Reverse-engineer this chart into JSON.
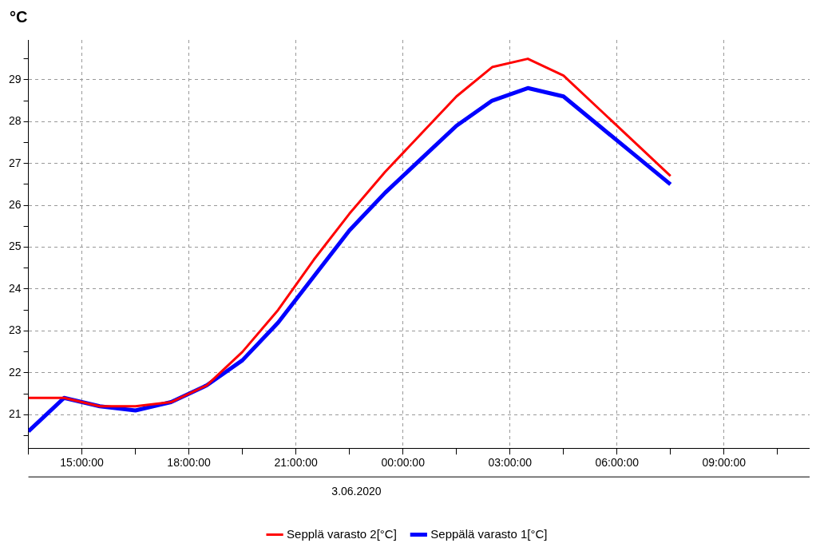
{
  "chart_data": {
    "type": "line",
    "ylabel": "°C",
    "x": [
      "2020-06-02T13:30",
      "2020-06-02T14:30",
      "2020-06-02T15:30",
      "2020-06-02T16:30",
      "2020-06-02T17:30",
      "2020-06-02T18:30",
      "2020-06-02T19:30",
      "2020-06-02T20:30",
      "2020-06-02T21:30",
      "2020-06-02T22:30",
      "2020-06-02T23:30",
      "2020-06-03T00:30",
      "2020-06-03T01:30",
      "2020-06-03T02:30",
      "2020-06-03T03:30",
      "2020-06-03T04:30",
      "2020-06-03T05:30",
      "2020-06-03T06:30",
      "2020-06-03T07:30"
    ],
    "series": [
      {
        "name": "Seppälä varasto 1[°C]",
        "color": "#0000ff",
        "values": [
          20.6,
          21.4,
          21.2,
          21.1,
          21.3,
          21.7,
          22.3,
          23.2,
          24.3,
          25.4,
          26.3,
          27.1,
          27.9,
          28.5,
          28.8,
          28.6,
          27.9,
          27.2,
          26.5
        ]
      },
      {
        "name": "Sepplä varasto 2[°C]",
        "color": "#ff0000",
        "values": [
          21.4,
          21.4,
          21.2,
          21.2,
          21.3,
          21.7,
          22.5,
          23.5,
          24.7,
          25.8,
          26.8,
          27.7,
          28.6,
          29.3,
          29.5,
          29.1,
          28.3,
          27.5,
          26.7
        ]
      }
    ],
    "xlim": [
      "2020-06-02T13:30",
      "2020-06-03T11:24"
    ],
    "xticks": [
      {
        "value": "2020-06-02T13:30",
        "label": null
      },
      {
        "value": "2020-06-02T15:00",
        "label": "15:00:00"
      },
      {
        "value": "2020-06-02T16:30",
        "label": null
      },
      {
        "value": "2020-06-02T18:00",
        "label": "18:00:00"
      },
      {
        "value": "2020-06-02T19:30",
        "label": null
      },
      {
        "value": "2020-06-02T21:00",
        "label": "21:00:00"
      },
      {
        "value": "2020-06-02T22:30",
        "label": null
      },
      {
        "value": "2020-06-03T00:00",
        "label": "00:00:00"
      },
      {
        "value": "2020-06-03T01:30",
        "label": null
      },
      {
        "value": "2020-06-03T03:00",
        "label": "03:00:00"
      },
      {
        "value": "2020-06-03T04:30",
        "label": null
      },
      {
        "value": "2020-06-03T06:00",
        "label": "06:00:00"
      },
      {
        "value": "2020-06-03T07:30",
        "label": null
      },
      {
        "value": "2020-06-03T09:00",
        "label": "09:00:00"
      },
      {
        "value": "2020-06-03T10:30",
        "label": null
      }
    ],
    "ylim": [
      20.2,
      29.95
    ],
    "yticks": [
      {
        "value": 20.5,
        "label": null
      },
      21,
      {
        "value": 21.5,
        "label": null
      },
      22,
      {
        "value": 22.5,
        "label": null
      },
      23,
      {
        "value": 23.5,
        "label": null
      },
      24,
      {
        "value": 24.5,
        "label": null
      },
      25,
      {
        "value": 25.5,
        "label": null
      },
      26,
      {
        "value": 26.5,
        "label": null
      },
      27,
      {
        "value": 27.5,
        "label": null
      },
      28,
      {
        "value": 28.5,
        "label": null
      },
      29,
      {
        "value": 29.5,
        "label": null
      }
    ],
    "annotations": [
      "3.06.2020"
    ],
    "grid": true,
    "legend": "bottom",
    "marker": "none",
    "line_style": "solid"
  }
}
